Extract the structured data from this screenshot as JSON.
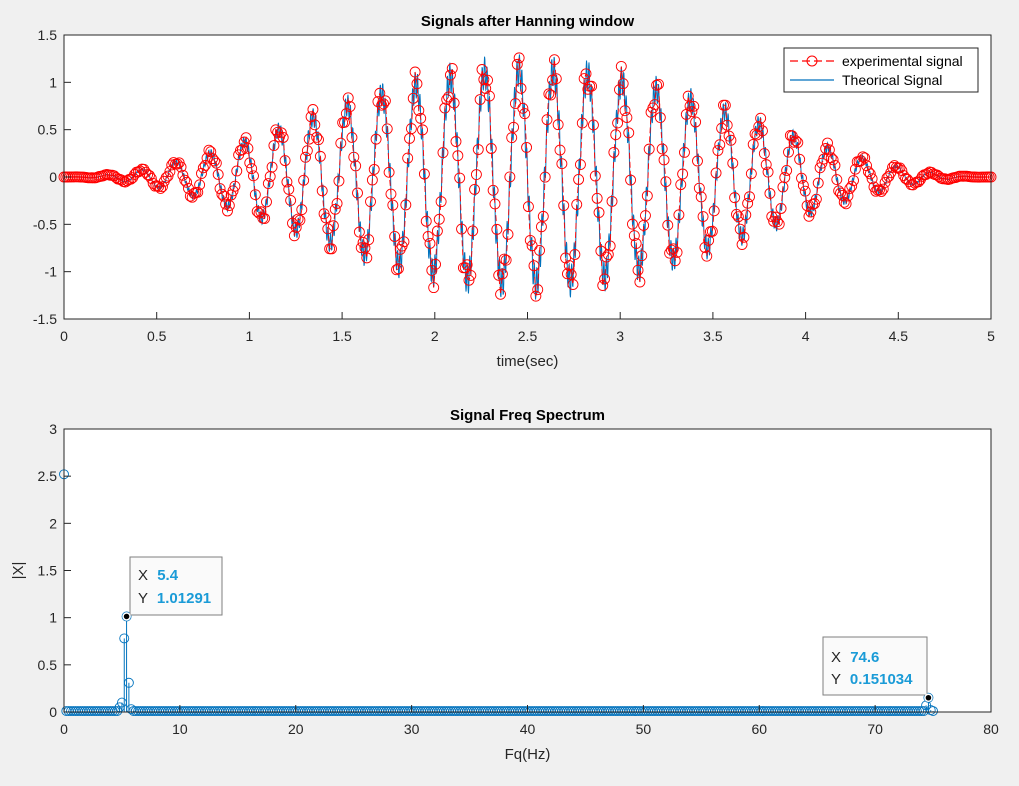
{
  "chart_data": [
    {
      "type": "line",
      "title": "Signals after Hanning window",
      "xlabel": "time(sec)",
      "ylabel": "",
      "xlim": [
        0,
        5
      ],
      "ylim": [
        -1.5,
        1.5
      ],
      "xticks": [
        0,
        0.5,
        1,
        1.5,
        2,
        2.5,
        3,
        3.5,
        4,
        4.5,
        5
      ],
      "yticks": [
        -1.5,
        -1,
        -0.5,
        0,
        0.5,
        1,
        1.5
      ],
      "xticklabels": [
        "0",
        "0.5",
        "1",
        "1.5",
        "2",
        "2.5",
        "3",
        "3.5",
        "4",
        "4.5",
        "5"
      ],
      "yticklabels": [
        "-1.5",
        "-1",
        "-0.5",
        "0",
        "0.5",
        "1",
        "1.5"
      ],
      "grid": false,
      "legend_position": "top-right",
      "signal_model": {
        "envelope": "hanning",
        "duration_sec": 5,
        "peak_amplitude": 1.2,
        "components": [
          {
            "frequency_hz": 5.4,
            "amplitude": 1.0
          },
          {
            "frequency_hz": 74.6,
            "amplitude": 0.15
          }
        ],
        "experimental_points": 500
      },
      "series": [
        {
          "name": "experimental signal",
          "color": "#ff0000",
          "style": "dashed-circle-markers"
        },
        {
          "name": "Theorical Signal",
          "color": "#0072bd",
          "style": "solid"
        }
      ]
    },
    {
      "type": "stem",
      "title": "Signal Freq Spectrum",
      "xlabel": "Fq(Hz)",
      "ylabel": "|X|",
      "xlim": [
        0,
        80
      ],
      "ylim": [
        0,
        3
      ],
      "xticks": [
        0,
        10,
        20,
        30,
        40,
        50,
        60,
        70,
        80
      ],
      "yticks": [
        0,
        0.5,
        1,
        1.5,
        2,
        2.5,
        3
      ],
      "xticklabels": [
        "0",
        "10",
        "20",
        "30",
        "40",
        "50",
        "60",
        "70",
        "80"
      ],
      "yticklabels": [
        "0",
        "0.5",
        "1",
        "1.5",
        "2",
        "2.5",
        "3"
      ],
      "grid": false,
      "color": "#0072bd",
      "freq_step_hz": 0.2,
      "freq_max_hz": 75,
      "baseline_value": 0.01,
      "peaks": [
        {
          "x": 0,
          "y": 2.52
        },
        {
          "x": 4.8,
          "y": 0.05
        },
        {
          "x": 5.0,
          "y": 0.1
        },
        {
          "x": 5.2,
          "y": 0.78
        },
        {
          "x": 5.4,
          "y": 1.01291
        },
        {
          "x": 5.6,
          "y": 0.31
        },
        {
          "x": 5.8,
          "y": 0.03
        },
        {
          "x": 74.4,
          "y": 0.07
        },
        {
          "x": 74.6,
          "y": 0.151034
        },
        {
          "x": 74.8,
          "y": 0.02
        }
      ],
      "datatips": [
        {
          "x_label": "X",
          "x_value": "5.4",
          "y_label": "Y",
          "y_value": "1.01291",
          "x": 5.4,
          "y": 1.01291
        },
        {
          "x_label": "X",
          "x_value": "74.6",
          "y_label": "Y",
          "y_value": "0.151034",
          "x": 74.6,
          "y": 0.151034
        }
      ]
    }
  ]
}
